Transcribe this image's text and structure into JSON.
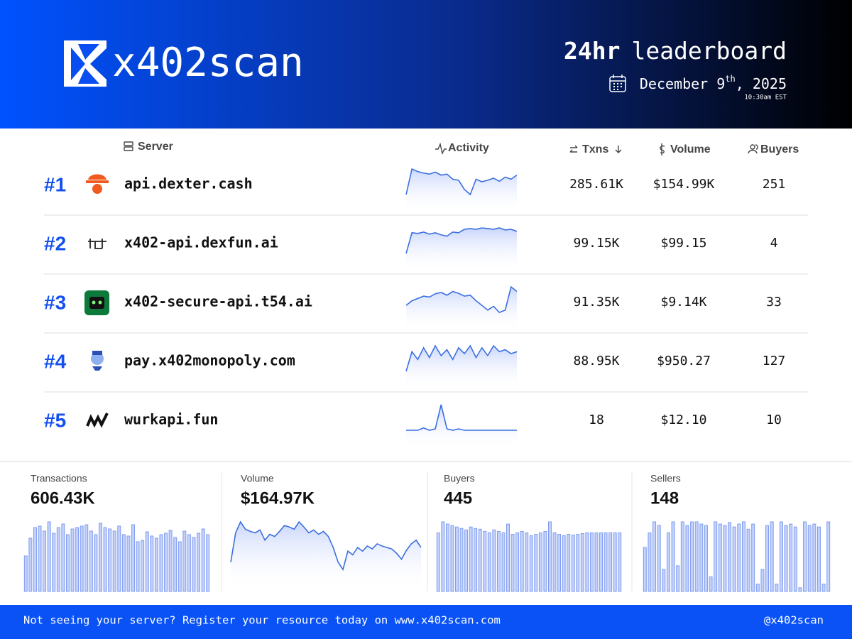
{
  "header": {
    "brand": "x402scan",
    "title_bold": "24hr",
    "title_rest": "leaderboard",
    "date_main": "December 9",
    "date_suffix": "th",
    "date_year": ", 2025",
    "time": "10:30am EST"
  },
  "table": {
    "columns": [
      "Server",
      "Activity",
      "Txns",
      "Volume",
      "Buyers"
    ],
    "rows": [
      {
        "rank": "#1",
        "server": "api.dexter.cash",
        "activity": [
          30,
          80,
          75,
          72,
          70,
          74,
          68,
          70,
          60,
          58,
          40,
          30,
          60,
          55,
          58,
          62,
          56,
          64,
          60,
          68
        ],
        "txns": "285.61K",
        "volume": "$154.99K",
        "buyers": 251
      },
      {
        "rank": "#2",
        "server": "x402-api.dexfun.ai",
        "activity": [
          10,
          70,
          68,
          72,
          66,
          70,
          64,
          60,
          72,
          70,
          80,
          82,
          80,
          84,
          82,
          80,
          84,
          78,
          80,
          74
        ],
        "txns": "99.15K",
        "volume": "$99.15",
        "buyers": 4
      },
      {
        "rank": "#3",
        "server": "x402-secure-api.t54.ai",
        "activity": [
          40,
          50,
          55,
          60,
          58,
          65,
          68,
          62,
          70,
          66,
          60,
          62,
          50,
          40,
          30,
          38,
          25,
          30,
          80,
          70
        ],
        "txns": "91.35K",
        "volume": "$9.14K",
        "buyers": 33
      },
      {
        "rank": "#4",
        "server": "pay.x402monopoly.com",
        "activity": [
          20,
          70,
          50,
          80,
          55,
          85,
          60,
          75,
          50,
          80,
          65,
          85,
          55,
          80,
          60,
          85,
          70,
          75,
          65,
          70
        ],
        "txns": "88.95K",
        "volume": "$950.27",
        "buyers": 127
      },
      {
        "rank": "#5",
        "server": "wurkapi.fun",
        "activity": [
          5,
          5,
          5,
          10,
          5,
          8,
          60,
          8,
          5,
          8,
          5,
          5,
          5,
          5,
          5,
          5,
          5,
          5,
          5,
          5
        ],
        "txns": "18",
        "volume": "$12.10",
        "buyers": 10
      }
    ]
  },
  "stats": [
    {
      "type": "bar",
      "label": "Transactions",
      "value": "606.43K",
      "values": [
        50,
        75,
        90,
        92,
        85,
        98,
        82,
        90,
        95,
        80,
        88,
        90,
        92,
        94,
        85,
        80,
        96,
        90,
        88,
        85,
        92,
        80,
        78,
        94,
        70,
        72,
        84,
        78,
        75,
        80,
        82,
        86,
        76,
        70,
        85,
        80,
        76,
        82,
        88,
        80
      ]
    },
    {
      "type": "area",
      "label": "Volume",
      "value": "$164.97K",
      "values": [
        40,
        80,
        95,
        85,
        82,
        80,
        84,
        70,
        78,
        75,
        82,
        90,
        88,
        85,
        95,
        88,
        80,
        84,
        78,
        82,
        75,
        60,
        40,
        30,
        55,
        50,
        60,
        55,
        62,
        58,
        65,
        62,
        60,
        58,
        52,
        44,
        56,
        65,
        70,
        60
      ]
    },
    {
      "type": "bar",
      "label": "Buyers",
      "value": "445",
      "values": [
        80,
        95,
        92,
        90,
        88,
        86,
        84,
        88,
        86,
        85,
        82,
        80,
        84,
        82,
        80,
        92,
        78,
        80,
        82,
        80,
        76,
        78,
        80,
        82,
        95,
        80,
        78,
        76,
        78,
        77,
        78,
        79,
        80,
        80,
        80,
        80,
        80,
        80,
        80,
        80
      ]
    },
    {
      "type": "bar",
      "label": "Sellers",
      "value": "148",
      "values": [
        60,
        80,
        95,
        90,
        30,
        80,
        95,
        35,
        95,
        90,
        95,
        95,
        92,
        90,
        20,
        95,
        92,
        90,
        94,
        88,
        92,
        95,
        85,
        92,
        10,
        30,
        90,
        95,
        10,
        95,
        90,
        92,
        88,
        5,
        95,
        90,
        92,
        88,
        10,
        95
      ]
    }
  ],
  "footer": {
    "message": "Not seeing your server? Register your resource today on www.x402scan.com",
    "handle": "@x402scan"
  }
}
